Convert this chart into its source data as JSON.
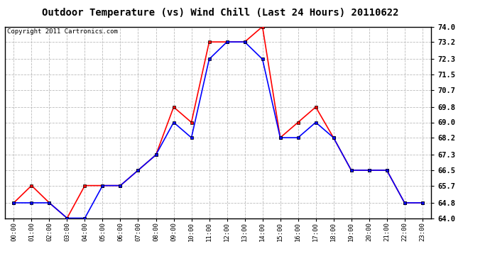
{
  "title": "Outdoor Temperature (vs) Wind Chill (Last 24 Hours) 20110622",
  "copyright": "Copyright 2011 Cartronics.com",
  "hours": [
    "00:00",
    "01:00",
    "02:00",
    "03:00",
    "04:00",
    "05:00",
    "06:00",
    "07:00",
    "08:00",
    "09:00",
    "10:00",
    "11:00",
    "12:00",
    "13:00",
    "14:00",
    "15:00",
    "16:00",
    "17:00",
    "18:00",
    "19:00",
    "20:00",
    "21:00",
    "22:00",
    "23:00"
  ],
  "temp": [
    64.8,
    65.7,
    64.8,
    64.0,
    65.7,
    65.7,
    65.7,
    66.5,
    67.3,
    69.8,
    69.0,
    73.2,
    73.2,
    73.2,
    74.0,
    68.2,
    69.0,
    69.8,
    68.2,
    66.5,
    66.5,
    66.5,
    64.8,
    64.8
  ],
  "windchill": [
    64.8,
    64.8,
    64.8,
    64.0,
    64.0,
    65.7,
    65.7,
    66.5,
    67.3,
    69.0,
    68.2,
    72.3,
    73.2,
    73.2,
    72.3,
    68.2,
    68.2,
    69.0,
    68.2,
    66.5,
    66.5,
    66.5,
    64.8,
    64.8
  ],
  "temp_color": "#ff0000",
  "windchill_color": "#0000ff",
  "ylim": [
    64.0,
    74.0
  ],
  "yticks": [
    64.0,
    64.8,
    65.7,
    66.5,
    67.3,
    68.2,
    69.0,
    69.8,
    70.7,
    71.5,
    72.3,
    73.2,
    74.0
  ],
  "bg_color": "#ffffff",
  "grid_color": "#bbbbbb",
  "title_fontsize": 10,
  "copyright_fontsize": 6.5
}
